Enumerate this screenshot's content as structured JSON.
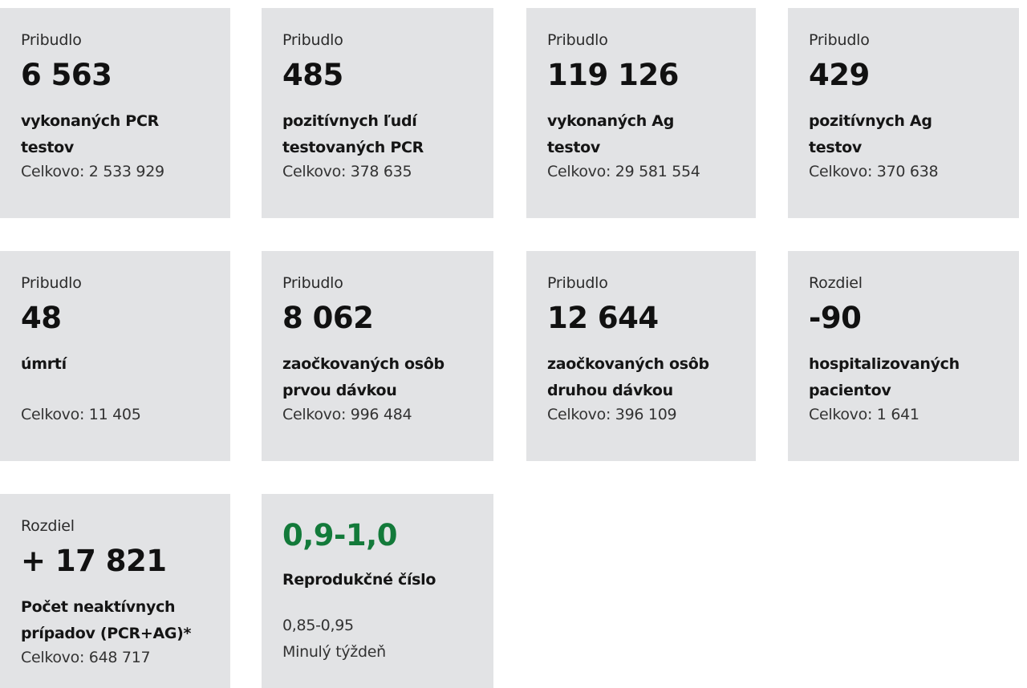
{
  "cards": [
    {
      "label": "Pribudlo",
      "value": "6 563",
      "desc": "vykonaných PCR testov",
      "total": "Celkovo: 2 533 929"
    },
    {
      "label": "Pribudlo",
      "value": "485",
      "desc": "pozitívnych ľudí testovaných PCR",
      "total": "Celkovo: 378 635"
    },
    {
      "label": "Pribudlo",
      "value": "119 126",
      "desc": "vykonaných Ag testov",
      "total": "Celkovo: 29 581 554"
    },
    {
      "label": "Pribudlo",
      "value": "429",
      "desc": "pozitívnych Ag testov",
      "total": "Celkovo: 370 638"
    },
    {
      "label": "Pribudlo",
      "value": "48",
      "desc": "úmrtí",
      "total": "Celkovo: 11 405"
    },
    {
      "label": "Pribudlo",
      "value": "8 062",
      "desc": "zaočkovaných osôb prvou dávkou",
      "total": "Celkovo: 996 484"
    },
    {
      "label": "Pribudlo",
      "value": "12 644",
      "desc": "zaočkovaných osôb druhou dávkou",
      "total": "Celkovo: 396 109"
    },
    {
      "label": "Rozdiel",
      "value": "-90",
      "desc": "hospitalizovaných pacientov",
      "total": "Celkovo: 1 641"
    },
    {
      "label": "Rozdiel",
      "value": "+ 17 821",
      "desc": "Počet neaktívnych prípadov (PCR+AG)*",
      "total": "Celkovo: 648 717"
    }
  ],
  "reproduction": {
    "value": "0,9-1,0",
    "title": "Reprodukčné číslo",
    "previous_value": "0,85-0,95",
    "previous_label": "Minulý týždeň",
    "value_color": "#137a3a"
  }
}
